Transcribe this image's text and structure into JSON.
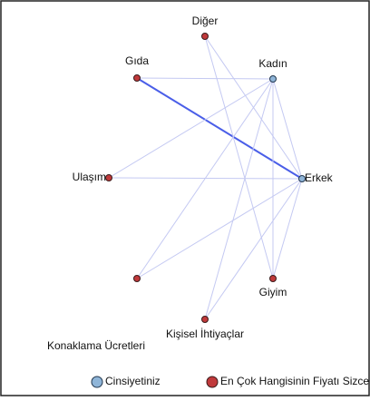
{
  "nodes": [
    {
      "label": "Diğer"
    },
    {
      "label": "Kadın"
    },
    {
      "label": "Gıda"
    },
    {
      "label": "Erkek"
    },
    {
      "label": "Ulaşım"
    },
    {
      "label": "Konaklama Ücretleri"
    },
    {
      "label": "Giyim"
    },
    {
      "label": "Kişisel İhtiyaçlar"
    }
  ],
  "legend": [
    {
      "label": "Cinsiyetiniz"
    },
    {
      "label": "En Çok Hangisinin Fiyatı Sizce Arttı"
    }
  ]
}
